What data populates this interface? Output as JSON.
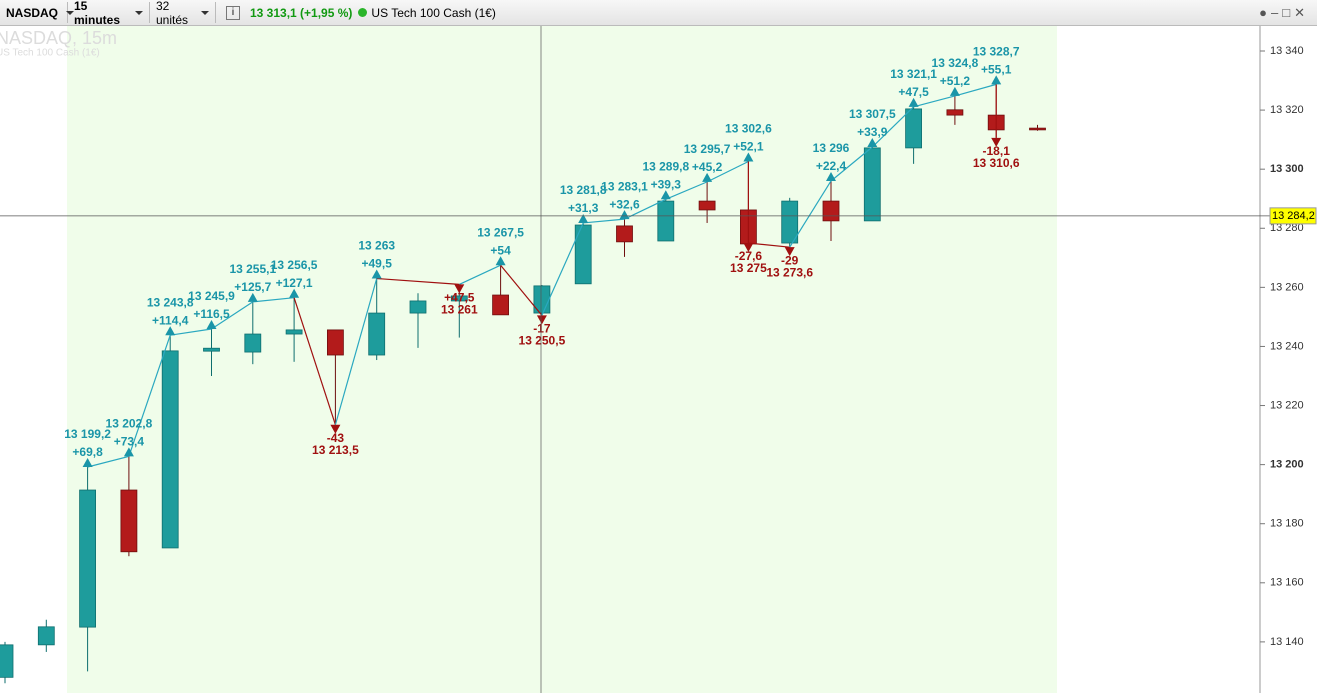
{
  "toolbar": {
    "instrument": "NASDAQ",
    "timeframe": "15 minutes",
    "units": "32 unités",
    "price": "13 313,1 (+1,95 %)",
    "product": "US Tech 100 Cash (1€)"
  },
  "chart_data": {
    "type": "candlestick",
    "title": "NASDAQ, 15m",
    "subtitle": "US Tech 100 Cash (1€)",
    "up_color": "#1e9c9c",
    "down_color": "#b31b1b",
    "open": [
      13128,
      13139,
      13145,
      13191.4,
      13171.8,
      13238.4,
      13238.1,
      13244.2,
      13245.6,
      13237.1,
      13251.3,
      13255.4,
      13257.4,
      13251.3,
      13261.2,
      13280.8,
      13275.7,
      13289.2,
      13286.2,
      13275,
      13289.2,
      13282.5,
      13307.2,
      13320.1,
      13318.3,
      13313.9
    ],
    "high": [
      13140,
      13147.5,
      13199.2,
      13202.8,
      13243.8,
      13245.9,
      13255.1,
      13256.5,
      13245.6,
      13263,
      13258,
      13261,
      13267.5,
      13260.8,
      13281.8,
      13283.1,
      13289.8,
      13295.7,
      13302.6,
      13290.3,
      13296,
      13307.5,
      13321.1,
      13324.8,
      13328.7,
      13315
    ],
    "low": [
      13126,
      13136.6,
      13130,
      13169,
      13171.8,
      13230,
      13234,
      13234.8,
      13213.5,
      13235.4,
      13239.5,
      13243,
      13250.7,
      13250.5,
      13261.2,
      13270.3,
      13275.7,
      13281.8,
      13275,
      13273.6,
      13275.7,
      13282.5,
      13301.8,
      13315,
      13310.6,
      13313
    ],
    "close": [
      13139,
      13145.1,
      13191.4,
      13170.5,
      13238.5,
      13239.4,
      13244.2,
      13245.6,
      13237.1,
      13251.3,
      13255.4,
      13257.1,
      13250.7,
      13260.5,
      13281.1,
      13275.4,
      13289.2,
      13286.2,
      13274.7,
      13289.2,
      13282.5,
      13307.2,
      13320.4,
      13318.3,
      13313.3,
      13313.3
    ],
    "zigzag": [
      {
        "x": 2,
        "value": 13199.2,
        "label": "13 199,2",
        "change": "+69,8"
      },
      {
        "x": 3,
        "value": 13202.8,
        "label": "13 202,8",
        "change": "+73,4"
      },
      {
        "x": 4,
        "value": 13243.8,
        "label": "13 243,8",
        "change": "+114,4"
      },
      {
        "x": 5,
        "value": 13245.9,
        "label": "13 245,9",
        "change": "+116,5"
      },
      {
        "x": 6,
        "value": 13255.1,
        "label": "13 255,1",
        "change": "+125,7"
      },
      {
        "x": 7,
        "value": 13256.5,
        "label": "13 256,5",
        "change": "+127,1"
      },
      {
        "x": 8,
        "value": 13213.5,
        "label": "13 213,5",
        "change": "-43"
      },
      {
        "x": 9,
        "value": 13263,
        "label": "13 263",
        "change": "+49,5"
      },
      {
        "x": 11,
        "value": 13261,
        "label": "13 261",
        "change": "+47,5"
      },
      {
        "x": 12,
        "value": 13267.5,
        "label": "13 267,5",
        "change": "+54"
      },
      {
        "x": 13,
        "value": 13250.5,
        "label": "13 250,5",
        "change": "-17"
      },
      {
        "x": 14,
        "value": 13281.8,
        "label": "13 281,8",
        "change": "+31,3"
      },
      {
        "x": 15,
        "value": 13283.1,
        "label": "13 283,1",
        "change": "+32,6"
      },
      {
        "x": 16,
        "value": 13289.8,
        "label": "13 289,8",
        "change": "+39,3"
      },
      {
        "x": 17,
        "value": 13295.7,
        "label": "13 295,7",
        "change": "+45,2"
      },
      {
        "x": 18,
        "value": 13302.6,
        "label": "13 302,6",
        "change": "+52,1"
      },
      {
        "x": 18,
        "value": 13275,
        "label": "13 275",
        "change": "-27,6"
      },
      {
        "x": 19,
        "value": 13273.6,
        "label": "13 273,6",
        "change": "-29"
      },
      {
        "x": 20,
        "value": 13296,
        "label": "13 296",
        "change": "+22,4"
      },
      {
        "x": 21,
        "value": 13307.5,
        "label": "13 307,5",
        "change": "+33,9"
      },
      {
        "x": 22,
        "value": 13321.1,
        "label": "13 321,1",
        "change": "+47,5"
      },
      {
        "x": 23,
        "value": 13324.8,
        "label": "13 324,8",
        "change": "+51,2"
      },
      {
        "x": 24,
        "value": 13328.7,
        "label": "13 328,7",
        "change": "+55,1"
      },
      {
        "x": 24,
        "value": 13310.6,
        "label": "13 310,6",
        "change": "-18,1"
      }
    ],
    "ylim": [
      13122.7,
      13348.8
    ],
    "yticks": [
      {
        "value": 13140,
        "label": "13 140"
      },
      {
        "value": 13160,
        "label": "13 160"
      },
      {
        "value": 13180,
        "label": "13 180"
      },
      {
        "value": 13200,
        "label": "13 200"
      },
      {
        "value": 13220,
        "label": "13 220"
      },
      {
        "value": 13240,
        "label": "13 240"
      },
      {
        "value": 13260,
        "label": "13 260"
      },
      {
        "value": 13280,
        "label": "13 280"
      },
      {
        "value": 13300,
        "label": "13 300"
      },
      {
        "value": 13320,
        "label": "13 320"
      },
      {
        "value": 13340,
        "label": "13 340"
      }
    ],
    "crosshair": {
      "value": 13284.2,
      "label": "13 284,2"
    }
  }
}
